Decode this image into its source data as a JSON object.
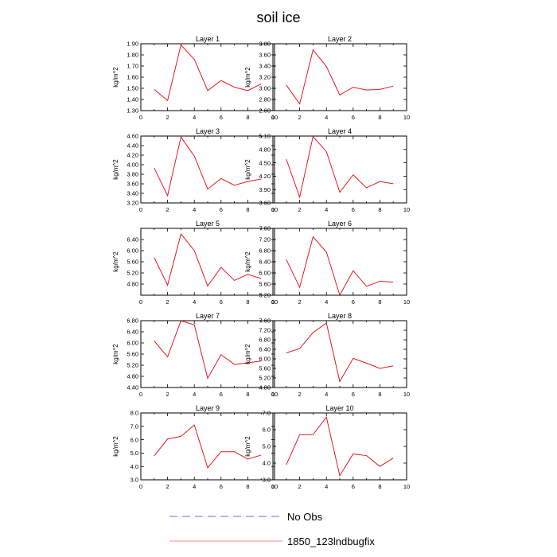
{
  "figure": {
    "title": "soil ice"
  },
  "legend": [
    {
      "label": "No Obs",
      "color": "#3b3bd6",
      "dash": true
    },
    {
      "label": "1850_123lndbugfix",
      "color": "#e31a1c",
      "dash": false
    }
  ],
  "chart_data": [
    {
      "type": "line",
      "title": "Layer 1",
      "ylabel": "kg/m^2",
      "xlim": [
        0,
        10
      ],
      "xticks": [
        0,
        2,
        4,
        6,
        8,
        10
      ],
      "ylim": [
        1.3,
        1.9
      ],
      "yticks": [
        "1.30",
        "1.40",
        "1.50",
        "1.60",
        "1.70",
        "1.80",
        "1.90"
      ],
      "series": [
        {
          "x": [
            1,
            2,
            3,
            4,
            5,
            6,
            7,
            8,
            9
          ],
          "values": [
            1.49,
            1.39,
            1.89,
            1.76,
            1.48,
            1.57,
            1.51,
            1.48,
            1.54
          ]
        }
      ]
    },
    {
      "type": "line",
      "title": "Layer 2",
      "ylabel": "kg/m^2",
      "xlim": [
        0,
        10
      ],
      "xticks": [
        0,
        2,
        4,
        6,
        8,
        10
      ],
      "ylim": [
        2.6,
        3.8
      ],
      "yticks": [
        "2.60",
        "2.80",
        "3.00",
        "3.20",
        "3.40",
        "3.60",
        "3.80"
      ],
      "series": [
        {
          "x": [
            1,
            2,
            3,
            4,
            5,
            6,
            7,
            8,
            9
          ],
          "values": [
            3.06,
            2.72,
            3.69,
            3.39,
            2.88,
            3.02,
            2.97,
            2.98,
            3.04
          ]
        }
      ]
    },
    {
      "type": "line",
      "title": "Layer 3",
      "ylabel": "kg/m^2",
      "xlim": [
        0,
        10
      ],
      "xticks": [
        0,
        2,
        4,
        6,
        8,
        10
      ],
      "ylim": [
        3.2,
        4.6
      ],
      "yticks": [
        "3.20",
        "3.40",
        "3.60",
        "3.80",
        "4.00",
        "4.20",
        "4.40",
        "4.60"
      ],
      "series": [
        {
          "x": [
            1,
            2,
            3,
            4,
            5,
            6,
            7,
            8,
            9
          ],
          "values": [
            3.93,
            3.35,
            4.58,
            4.18,
            3.49,
            3.71,
            3.57,
            3.65,
            3.7
          ]
        }
      ]
    },
    {
      "type": "line",
      "title": "Layer 4",
      "ylabel": "kg/m^2",
      "xlim": [
        0,
        10
      ],
      "xticks": [
        0,
        2,
        4,
        6,
        8,
        10
      ],
      "ylim": [
        3.6,
        5.1
      ],
      "yticks": [
        "3.60",
        "3.90",
        "4.20",
        "4.50",
        "4.80",
        "5.10"
      ],
      "series": [
        {
          "x": [
            1,
            2,
            3,
            4,
            5,
            6,
            7,
            8,
            9
          ],
          "values": [
            4.58,
            3.73,
            5.09,
            4.75,
            3.84,
            4.23,
            3.94,
            4.08,
            4.03
          ]
        }
      ]
    },
    {
      "type": "line",
      "title": "Layer 5",
      "ylabel": "kg/m^2",
      "xlim": [
        0,
        10
      ],
      "xticks": [
        0,
        2,
        4,
        6,
        8,
        10
      ],
      "ylim": [
        4.4,
        6.8
      ],
      "yticks": [
        "4.80",
        "5.20",
        "5.60",
        "6.00",
        "6.40"
      ],
      "series": [
        {
          "x": [
            1,
            2,
            3,
            4,
            5,
            6,
            7,
            8,
            9
          ],
          "values": [
            5.75,
            4.76,
            6.6,
            6.0,
            4.73,
            5.4,
            4.93,
            5.15,
            5.0
          ]
        }
      ]
    },
    {
      "type": "line",
      "title": "Layer 6",
      "ylabel": "kg/m^2",
      "xlim": [
        0,
        10
      ],
      "xticks": [
        0,
        2,
        4,
        6,
        8,
        10
      ],
      "ylim": [
        5.2,
        7.6
      ],
      "yticks": [
        "5.20",
        "5.60",
        "6.00",
        "6.40",
        "6.80",
        "7.20",
        "7.60"
      ],
      "series": [
        {
          "x": [
            1,
            2,
            3,
            4,
            5,
            6,
            7,
            8,
            9
          ],
          "values": [
            6.48,
            5.48,
            7.3,
            6.75,
            5.2,
            6.08,
            5.52,
            5.7,
            5.67
          ]
        }
      ]
    },
    {
      "type": "line",
      "title": "Layer 7",
      "ylabel": "kg/m^2",
      "xlim": [
        0,
        10
      ],
      "xticks": [
        0,
        2,
        4,
        6,
        8,
        10
      ],
      "ylim": [
        4.4,
        6.8
      ],
      "yticks": [
        "4.40",
        "4.80",
        "5.20",
        "5.60",
        "6.00",
        "6.40",
        "6.80"
      ],
      "series": [
        {
          "x": [
            1,
            2,
            3,
            4,
            5,
            6,
            7,
            8,
            9
          ],
          "values": [
            6.07,
            5.5,
            6.8,
            6.65,
            4.73,
            5.58,
            5.23,
            5.29,
            5.35
          ]
        }
      ]
    },
    {
      "type": "line",
      "title": "Layer 8",
      "ylabel": "kg/m^2",
      "xlim": [
        0,
        10
      ],
      "xticks": [
        0,
        2,
        4,
        6,
        8,
        10
      ],
      "ylim": [
        4.8,
        7.6
      ],
      "yticks": [
        "4.80",
        "5.20",
        "5.60",
        "6.00",
        "6.40",
        "6.80",
        "7.20",
        "7.60"
      ],
      "series": [
        {
          "x": [
            1,
            2,
            3,
            4,
            5,
            6,
            7,
            8,
            9
          ],
          "values": [
            6.25,
            6.43,
            7.1,
            7.5,
            5.05,
            6.02,
            5.82,
            5.6,
            5.71
          ]
        }
      ]
    },
    {
      "type": "line",
      "title": "Layer 9",
      "ylabel": "kg/m^2",
      "xlim": [
        0,
        10
      ],
      "xticks": [
        0,
        2,
        4,
        6,
        8,
        10
      ],
      "ylim": [
        3.0,
        8.0
      ],
      "yticks": [
        "3.0",
        "4.0",
        "5.0",
        "6.0",
        "7.0",
        "8.0"
      ],
      "series": [
        {
          "x": [
            1,
            2,
            3,
            4,
            5,
            6,
            7,
            8,
            9
          ],
          "values": [
            4.8,
            6.05,
            6.25,
            7.1,
            3.9,
            5.1,
            5.1,
            4.55,
            4.85
          ]
        }
      ]
    },
    {
      "type": "line",
      "title": "Layer 10",
      "ylabel": "kg/m^2",
      "xlim": [
        0,
        10
      ],
      "xticks": [
        0,
        2,
        4,
        6,
        8,
        10
      ],
      "ylim": [
        3.0,
        7.0
      ],
      "yticks": [
        "3.0",
        "4.0",
        "5.0",
        "6.0",
        "7.0"
      ],
      "series": [
        {
          "x": [
            1,
            2,
            3,
            4,
            5,
            6,
            7,
            8,
            9
          ],
          "values": [
            3.9,
            5.7,
            5.7,
            6.75,
            3.25,
            4.55,
            4.45,
            3.8,
            4.3
          ]
        }
      ]
    }
  ]
}
